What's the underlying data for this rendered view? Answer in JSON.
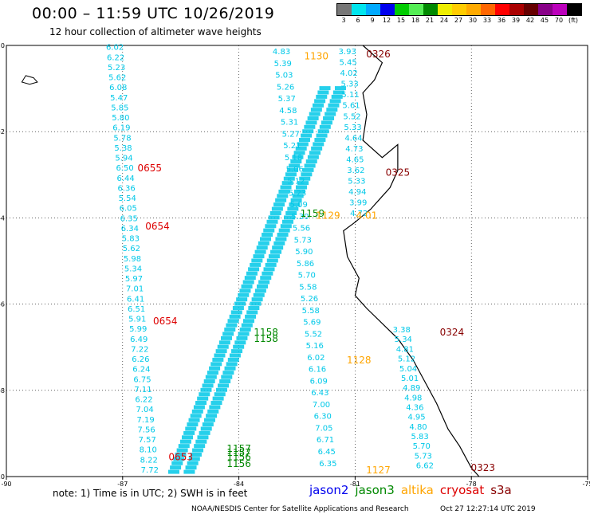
{
  "header": {
    "title": "00:00 – 11:59 UTC 10/26/2019",
    "subtitle": "12 hour collection of altimeter wave heights"
  },
  "legend": {
    "labels": [
      "3",
      "6",
      "9",
      "12",
      "15",
      "18",
      "21",
      "24",
      "27",
      "30",
      "33",
      "36",
      "39",
      "42",
      "45",
      "70",
      "(ft)"
    ],
    "colors": [
      "#777777",
      "#00e5ee",
      "#00aaff",
      "#0000ee",
      "#00cc00",
      "#55ee55",
      "#008800",
      "#eeee00",
      "#ffcc00",
      "#ffaa00",
      "#ff6600",
      "#ff0000",
      "#aa0000",
      "#660000",
      "#880088",
      "#bb00bb",
      "#000000"
    ]
  },
  "axes": {
    "lon_min": -90,
    "lon_max": -75,
    "lat_min": -10,
    "lat_max": 0,
    "x_ticks": [
      "-90",
      "-87",
      "-84",
      "-81",
      "-78",
      "-75"
    ],
    "y_ticks": [
      "0",
      "-2",
      "-4",
      "-6",
      "-8",
      "-10"
    ],
    "grid_lons": [
      -87,
      -84,
      -81,
      -78
    ],
    "grid_lats": [
      -2,
      -4,
      -6,
      -8
    ]
  },
  "colors": {
    "jason2": "#0000ee",
    "jason3": "#008800",
    "altika": "#ffa500",
    "cryosat": "#dd0000",
    "s3a": "#880000",
    "swh": "#00c8e8"
  },
  "tracks": [
    {
      "name": "west-track",
      "lon0": -87.2,
      "lat0": -0.05,
      "lon1": -86.3,
      "lat1": -9.85,
      "values": [
        "6.02",
        "6.22",
        "5.23",
        "5.62",
        "6.08",
        "5.47",
        "5.85",
        "5.80",
        "6.19",
        "5.78",
        "5.38",
        "5.94",
        "6.50",
        "6.44",
        "6.36",
        "5.54",
        "6.05",
        "6.35",
        "6.34",
        "5.83",
        "5.62",
        "5.98",
        "5.34",
        "5.97",
        "7.01",
        "6.41",
        "6.51",
        "5.91",
        "5.99",
        "6.49",
        "7.22",
        "6.26",
        "6.24",
        "6.75",
        "7.11",
        "6.22",
        "7.04",
        "7.19",
        "7.56",
        "7.57",
        "8.10",
        "8.22",
        "7.72"
      ]
    },
    {
      "name": "mid-track",
      "lon0": -82.9,
      "lat0": -0.15,
      "lon1": -81.7,
      "lat1": -9.7,
      "values": [
        "4.83",
        "5.39",
        "5.03",
        "5.26",
        "5.37",
        "4.58",
        "5.31",
        "5.27",
        "5.21",
        "5.18",
        "5.06",
        "5.12",
        "5.23",
        "5.09",
        "5.30",
        "5.56",
        "5.73",
        "5.90",
        "5.86",
        "5.70",
        "5.58",
        "5.26",
        "5.58",
        "5.69",
        "5.52",
        "5.16",
        "6.02",
        "6.16",
        "6.09",
        "6.43",
        "7.00",
        "6.30",
        "7.05",
        "6.71",
        "6.45",
        "6.35"
      ]
    },
    {
      "name": "coast-track",
      "lon0": -81.2,
      "lat0": -0.15,
      "lon1": -80.9,
      "lat1": -3.9,
      "values": [
        "3.93",
        "5.45",
        "4.02",
        "5.33",
        "5.11",
        "5.61",
        "5.52",
        "5.33",
        "4.64",
        "4.73",
        "4.65",
        "3.62",
        "5.33",
        "4.94",
        "3.99",
        "4.72"
      ]
    },
    {
      "name": "east-track",
      "lon0": -79.8,
      "lat0": -6.6,
      "lon1": -79.2,
      "lat1": -9.75,
      "values": [
        "3.38",
        "5.34",
        "4.81",
        "5.12",
        "5.04",
        "5.01",
        "4.89",
        "4.98",
        "4.36",
        "4.95",
        "4.80",
        "5.83",
        "5.70",
        "5.73",
        "6.62"
      ]
    }
  ],
  "diag_tracks": [
    {
      "name": "diag-a",
      "lon0": -85.7,
      "lat0": -9.9,
      "lon1": -81.8,
      "lat1": -1.0,
      "count": 90
    },
    {
      "name": "diag-b",
      "lon0": -85.3,
      "lat0": -9.9,
      "lon1": -81.4,
      "lat1": -1.0,
      "count": 90
    }
  ],
  "time_labels": [
    {
      "text": "1130",
      "lon": -82.0,
      "lat": -0.25,
      "color": "#ffa500"
    },
    {
      "text": "0326",
      "lon": -80.4,
      "lat": -0.2,
      "color": "#880000"
    },
    {
      "text": "0655",
      "lon": -86.3,
      "lat": -2.85,
      "color": "#dd0000"
    },
    {
      "text": "0325",
      "lon": -79.9,
      "lat": -2.95,
      "color": "#880000"
    },
    {
      "text": "1159",
      "lon": -82.1,
      "lat": -3.9,
      "color": "#008800"
    },
    {
      "text": "1129",
      "lon": -81.7,
      "lat": -3.95,
      "color": "#ffa500"
    },
    {
      "text": "4.01",
      "lon": -80.7,
      "lat": -3.95,
      "color": "#ffa500"
    },
    {
      "text": "0654",
      "lon": -86.1,
      "lat": -4.2,
      "color": "#dd0000"
    },
    {
      "text": "0654",
      "lon": -85.9,
      "lat": -6.4,
      "color": "#dd0000"
    },
    {
      "text": "1158",
      "lon": -83.3,
      "lat": -6.65,
      "color": "#008800"
    },
    {
      "text": "1158",
      "lon": -83.3,
      "lat": -6.8,
      "color": "#008800"
    },
    {
      "text": "0324",
      "lon": -78.5,
      "lat": -6.65,
      "color": "#880000"
    },
    {
      "text": "1128",
      "lon": -80.9,
      "lat": -7.3,
      "color": "#ffa500"
    },
    {
      "text": "1157",
      "lon": -84.0,
      "lat": -9.35,
      "color": "#008800"
    },
    {
      "text": "1157",
      "lon": -84.0,
      "lat": -9.45,
      "color": "#008800"
    },
    {
      "text": "1156",
      "lon": -84.0,
      "lat": -9.55,
      "color": "#008800"
    },
    {
      "text": "1156",
      "lon": -84.0,
      "lat": -9.7,
      "color": "#008800"
    },
    {
      "text": "0653",
      "lon": -85.5,
      "lat": -9.55,
      "color": "#dd0000"
    },
    {
      "text": "1127",
      "lon": -80.4,
      "lat": -9.85,
      "color": "#ffa500"
    },
    {
      "text": "0323",
      "lon": -77.7,
      "lat": -9.8,
      "color": "#880000"
    }
  ],
  "coastline": [
    [
      -80.8,
      0.0
    ],
    [
      -80.3,
      -0.4
    ],
    [
      -80.5,
      -0.8
    ],
    [
      -80.8,
      -1.1
    ],
    [
      -80.7,
      -1.6
    ],
    [
      -80.8,
      -2.2
    ],
    [
      -80.3,
      -2.6
    ],
    [
      -79.9,
      -2.3
    ],
    [
      -79.9,
      -2.9
    ],
    [
      -80.1,
      -3.3
    ],
    [
      -80.3,
      -3.5
    ],
    [
      -80.6,
      -3.8
    ],
    [
      -81.0,
      -4.1
    ],
    [
      -81.3,
      -4.3
    ],
    [
      -81.2,
      -4.9
    ],
    [
      -80.9,
      -5.4
    ],
    [
      -81.0,
      -5.8
    ],
    [
      -80.7,
      -6.1
    ],
    [
      -79.9,
      -6.8
    ],
    [
      -79.5,
      -7.3
    ],
    [
      -79.2,
      -7.8
    ],
    [
      -78.9,
      -8.3
    ],
    [
      -78.6,
      -8.9
    ],
    [
      -78.3,
      -9.3
    ],
    [
      -78.0,
      -9.8
    ],
    [
      -77.8,
      -10.0
    ]
  ],
  "islands": [
    [
      [
        -89.5,
        -0.7
      ],
      [
        -89.3,
        -0.75
      ],
      [
        -89.2,
        -0.85
      ],
      [
        -89.4,
        -0.9
      ],
      [
        -89.6,
        -0.85
      ]
    ]
  ],
  "footer": {
    "note": "note: 1) Time is in UTC; 2) SWH is in feet",
    "satellites": [
      "jason2",
      "jason3",
      "altika",
      "cryosat",
      "s3a"
    ],
    "credit": "NOAA/NESDIS Center for Satellite Applications and Research",
    "timestamp": "Oct 27 12:27:14 UTC 2019"
  }
}
